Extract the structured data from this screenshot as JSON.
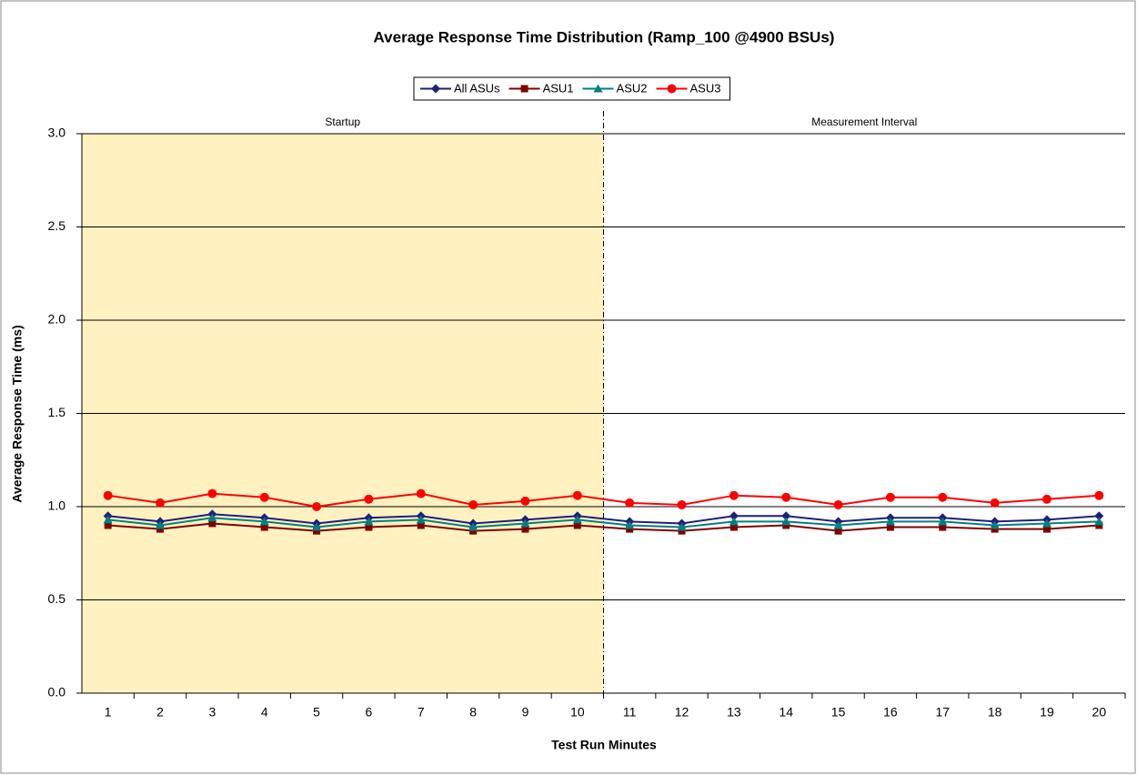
{
  "chart_data": {
    "type": "line",
    "title": "Average Response Time Distribution (Ramp_100 @4900 BSUs)",
    "x_label": "Test Run Minutes",
    "y_label": "Average Response Time (ms)",
    "categories": [
      1,
      2,
      3,
      4,
      5,
      6,
      7,
      8,
      9,
      10,
      11,
      12,
      13,
      14,
      15,
      16,
      17,
      18,
      19,
      20
    ],
    "series": [
      {
        "name": "All ASUs",
        "color": "#1f1f7a",
        "marker": "diamond",
        "values": [
          0.95,
          0.92,
          0.96,
          0.94,
          0.91,
          0.94,
          0.95,
          0.91,
          0.93,
          0.95,
          0.92,
          0.91,
          0.95,
          0.95,
          0.92,
          0.94,
          0.94,
          0.92,
          0.93,
          0.95
        ]
      },
      {
        "name": "ASU1",
        "color": "#800000",
        "marker": "square",
        "values": [
          0.9,
          0.88,
          0.91,
          0.89,
          0.87,
          0.89,
          0.9,
          0.87,
          0.88,
          0.9,
          0.88,
          0.87,
          0.89,
          0.9,
          0.87,
          0.89,
          0.89,
          0.88,
          0.88,
          0.9
        ]
      },
      {
        "name": "ASU2",
        "color": "#008080",
        "marker": "triangle",
        "values": [
          0.93,
          0.9,
          0.94,
          0.92,
          0.89,
          0.92,
          0.93,
          0.89,
          0.91,
          0.93,
          0.9,
          0.89,
          0.92,
          0.92,
          0.9,
          0.92,
          0.92,
          0.9,
          0.91,
          0.92
        ]
      },
      {
        "name": "ASU3",
        "color": "#ff0000",
        "marker": "circle",
        "values": [
          1.06,
          1.02,
          1.07,
          1.05,
          1.0,
          1.04,
          1.07,
          1.01,
          1.03,
          1.06,
          1.02,
          1.01,
          1.06,
          1.05,
          1.01,
          1.05,
          1.05,
          1.02,
          1.04,
          1.06
        ]
      }
    ],
    "regions": [
      {
        "label": "Startup",
        "start": 1,
        "end": 10,
        "color": "#fff2c0"
      },
      {
        "label": "Measurement Interval",
        "start": 11,
        "end": 20
      }
    ],
    "ylim": [
      0,
      3
    ],
    "yticks": [
      {
        "value": 0,
        "label": "0.0"
      },
      0.5,
      {
        "value": 1,
        "label": "1.0"
      },
      1.5,
      {
        "value": 2,
        "label": "2.0"
      },
      2.5,
      {
        "value": 3,
        "label": "3.0"
      }
    ],
    "grid": true,
    "legend": "top"
  }
}
